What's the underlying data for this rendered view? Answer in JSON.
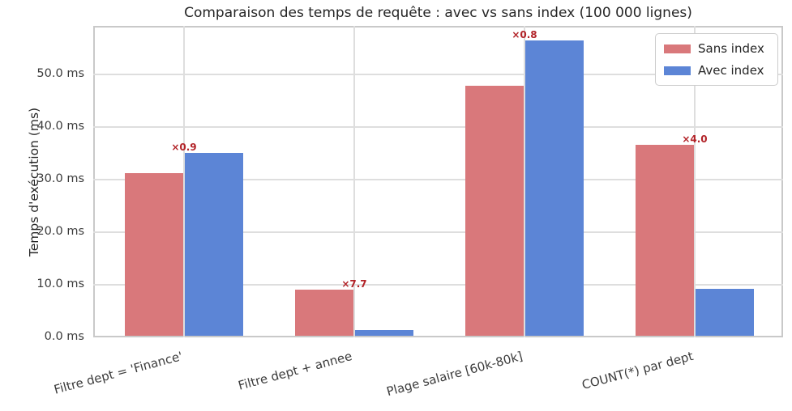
{
  "chart_data": {
    "type": "bar",
    "title": "Comparaison des temps de requête : avec vs sans index (100 000 lignes)",
    "ylabel": "Temps d'exécution (ms)",
    "xlabel": "",
    "categories": [
      "Filtre dept = 'Finance'",
      "Filtre dept + annee",
      "Plage salaire [60k-80k]",
      "COUNT(*) par dept"
    ],
    "series": [
      {
        "name": "Sans index",
        "color": "#d9787b",
        "values": [
          31.0,
          8.8,
          47.5,
          36.3
        ]
      },
      {
        "name": "Avec index",
        "color": "#5c85d6",
        "values": [
          34.8,
          1.1,
          56.2,
          8.9
        ]
      }
    ],
    "speedup_labels": [
      "×0.9",
      "×7.7",
      "×0.8",
      "×4.0"
    ],
    "annotation_color": "#b22328",
    "yticks": [
      {
        "value": 0,
        "label": "0.0 ms"
      },
      {
        "value": 10,
        "label": "10.0 ms"
      },
      {
        "value": 20,
        "label": "20.0 ms"
      },
      {
        "value": 30,
        "label": "30.0 ms"
      },
      {
        "value": 40,
        "label": "40.0 ms"
      },
      {
        "value": 50,
        "label": "50.0 ms"
      }
    ],
    "ylim": [
      0,
      59.2
    ],
    "grid": true,
    "legend_position": "upper right"
  }
}
